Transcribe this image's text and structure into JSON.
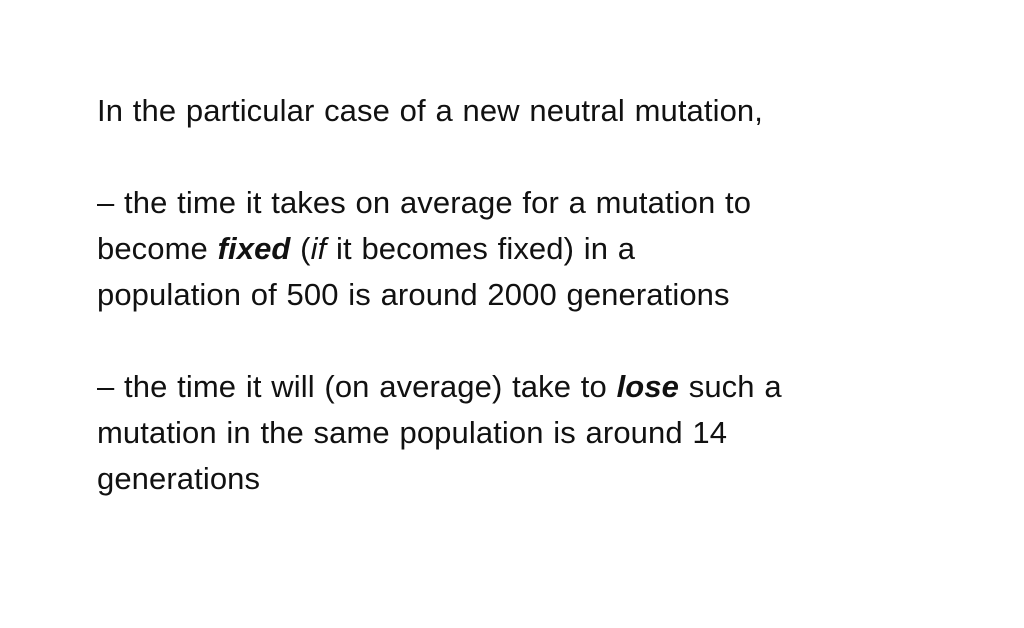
{
  "intro": "In the particular case of a new neutral mutation,",
  "point1": {
    "line1": "– the time it takes on average for a mutation to",
    "line2_pre": "become ",
    "line2_bold": "fixed",
    "line2_paren_open": " (",
    "line2_italic": "if",
    "line2_post": " it becomes fixed) in a",
    "line3": "population of 500 is around 2000 generations"
  },
  "point2": {
    "line1_pre": "– the time it will (on average) take to ",
    "line1_bold": "lose",
    "line1_post": " such a",
    "line2": "mutation in the same population is around 14",
    "line3": "generations"
  }
}
